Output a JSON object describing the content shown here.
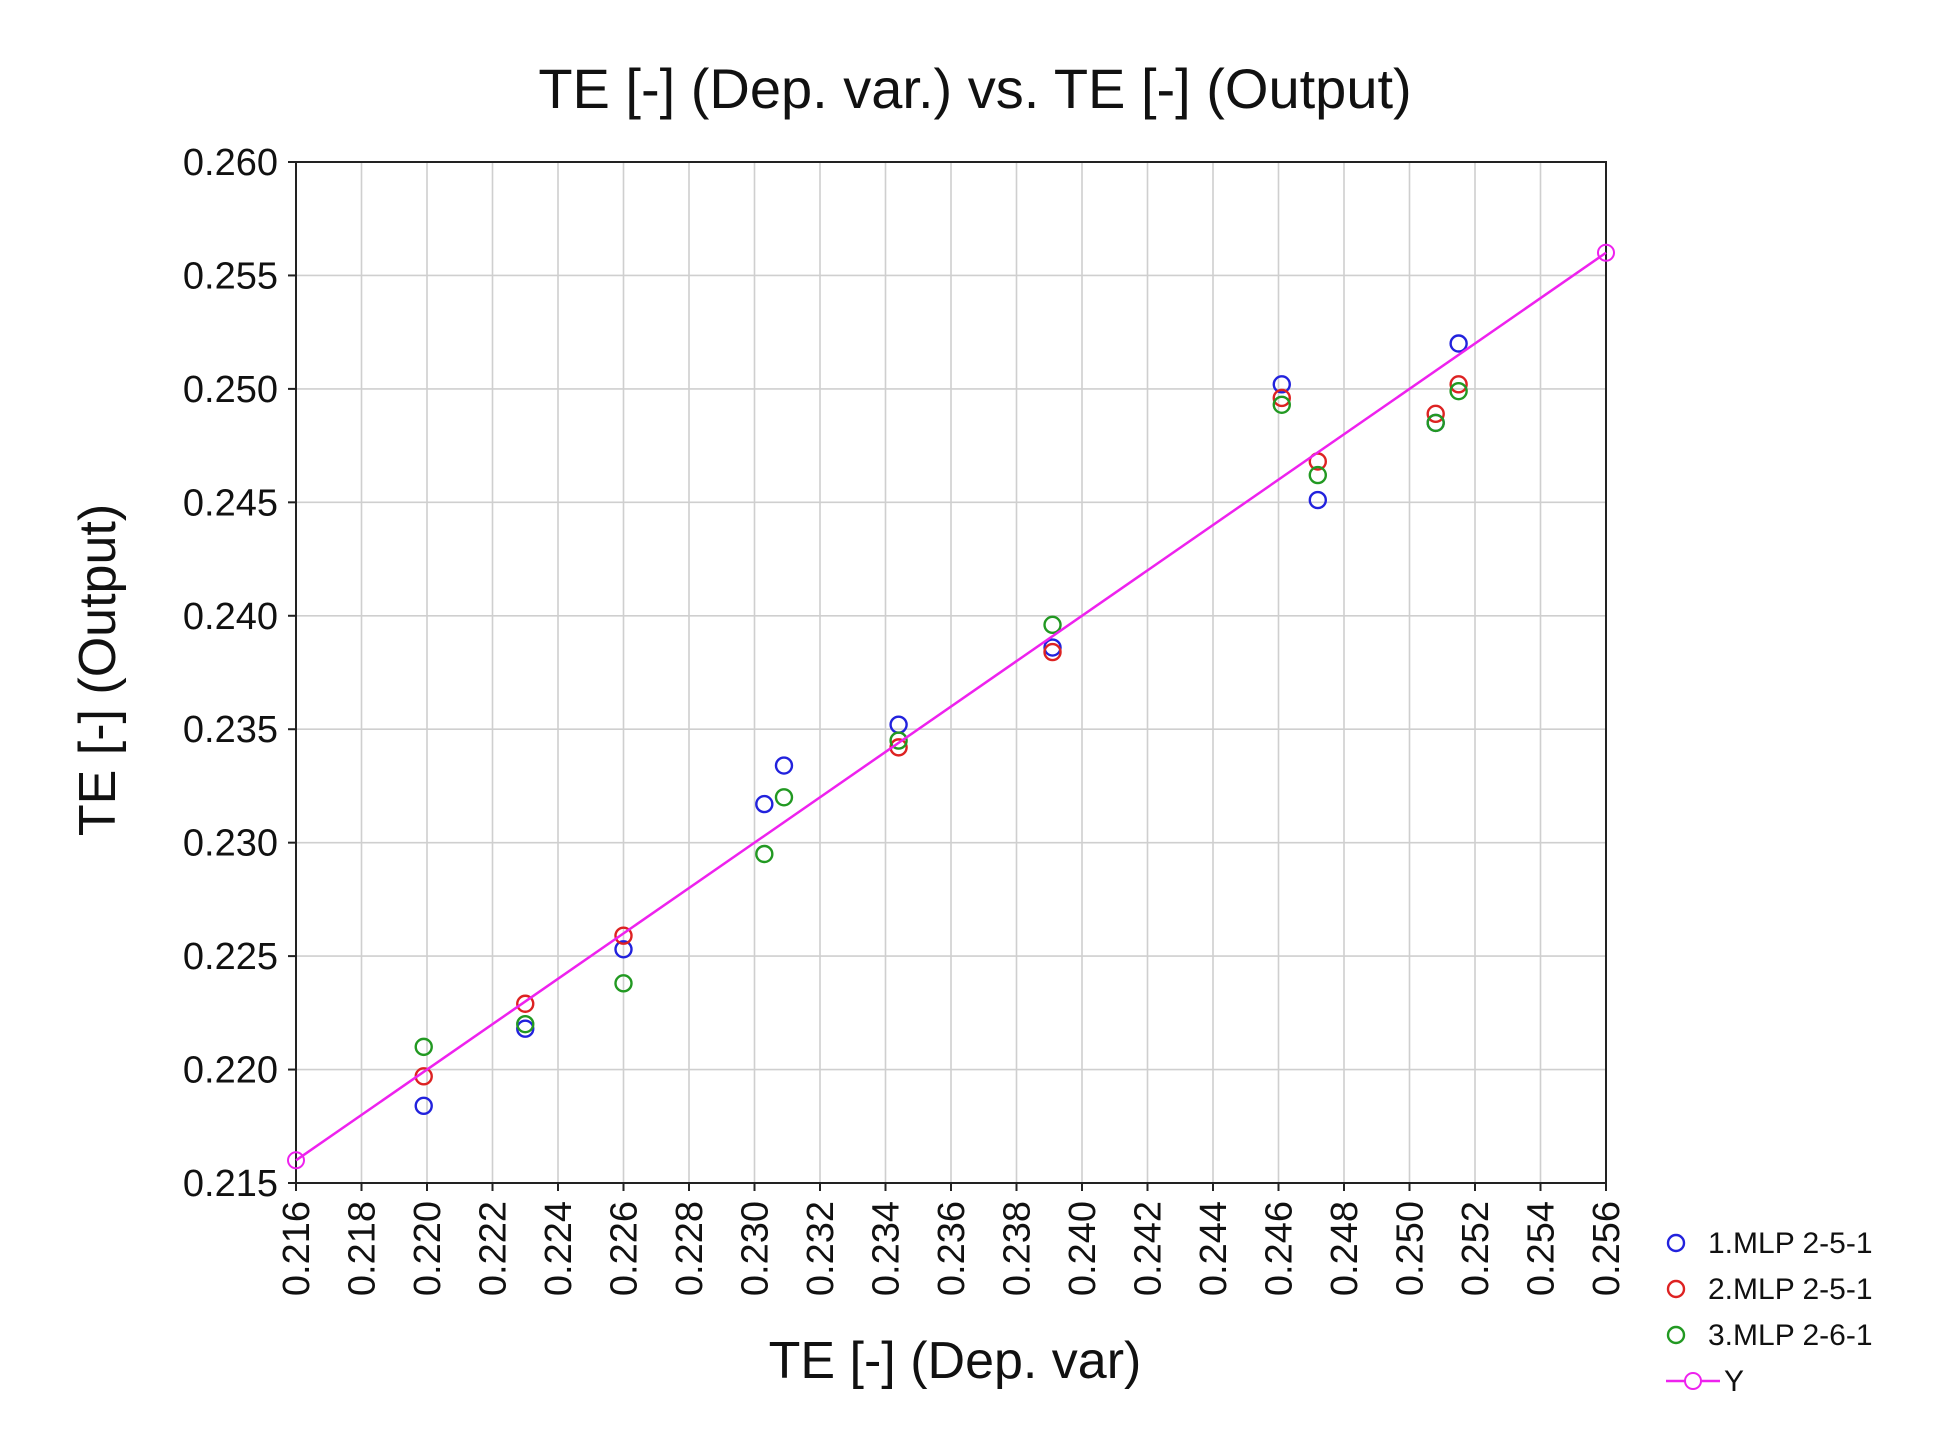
{
  "chart_data": {
    "type": "scatter",
    "title": "TE [-] (Dep. var.) vs. TE [-] (Output)",
    "xlabel": "TE [-] (Dep. var)",
    "ylabel": "TE [-] (Output)",
    "xlim": [
      0.216,
      0.256
    ],
    "ylim": [
      0.215,
      0.26
    ],
    "x_ticks": [
      "0.216",
      "0.218",
      "0.220",
      "0.222",
      "0.224",
      "0.226",
      "0.228",
      "0.230",
      "0.232",
      "0.234",
      "0.236",
      "0.238",
      "0.240",
      "0.242",
      "0.244",
      "0.246",
      "0.248",
      "0.250",
      "0.252",
      "0.254",
      "0.256"
    ],
    "y_ticks": [
      "0.215",
      "0.220",
      "0.225",
      "0.230",
      "0.235",
      "0.240",
      "0.245",
      "0.250",
      "0.255",
      "0.260"
    ],
    "grid": true,
    "legend_position": "right-bottom",
    "series": [
      {
        "name": "1.MLP 2-5-1",
        "color": "#2222dd",
        "marker": "circle-open",
        "points": [
          [
            0.2199,
            0.2184
          ],
          [
            0.223,
            0.2218
          ],
          [
            0.226,
            0.2253
          ],
          [
            0.2303,
            0.2317
          ],
          [
            0.2309,
            0.2334
          ],
          [
            0.2344,
            0.2352
          ],
          [
            0.2391,
            0.2386
          ],
          [
            0.2461,
            0.2502
          ],
          [
            0.2472,
            0.2451
          ],
          [
            0.2508,
            0.2485
          ],
          [
            0.2515,
            0.252
          ]
        ]
      },
      {
        "name": "2.MLP 2-5-1",
        "color": "#dd2222",
        "marker": "circle-open",
        "points": [
          [
            0.2199,
            0.2197
          ],
          [
            0.223,
            0.2229
          ],
          [
            0.226,
            0.2259
          ],
          [
            0.2344,
            0.2342
          ],
          [
            0.2391,
            0.2384
          ],
          [
            0.2461,
            0.2496
          ],
          [
            0.2472,
            0.2468
          ],
          [
            0.2508,
            0.2489
          ],
          [
            0.2515,
            0.2502
          ]
        ]
      },
      {
        "name": "3.MLP 2-6-1",
        "color": "#229922",
        "marker": "circle-open",
        "points": [
          [
            0.2199,
            0.221
          ],
          [
            0.223,
            0.222
          ],
          [
            0.226,
            0.2238
          ],
          [
            0.2303,
            0.2295
          ],
          [
            0.2309,
            0.232
          ],
          [
            0.2344,
            0.2345
          ],
          [
            0.2391,
            0.2396
          ],
          [
            0.2461,
            0.2493
          ],
          [
            0.2472,
            0.2462
          ],
          [
            0.2508,
            0.2485
          ],
          [
            0.2515,
            0.2499
          ]
        ]
      },
      {
        "name": "Y",
        "color": "#ee22ee",
        "marker": "line-with-circle-endpoints",
        "points": [
          [
            0.216,
            0.216
          ],
          [
            0.256,
            0.256
          ]
        ]
      }
    ]
  }
}
